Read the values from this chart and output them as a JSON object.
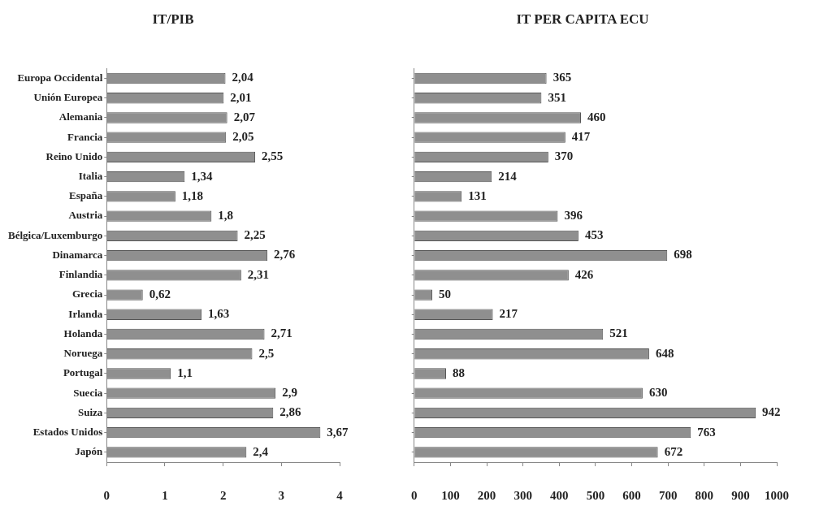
{
  "chart_data": [
    {
      "type": "bar",
      "orientation": "horizontal",
      "title": "IT/PIB",
      "categories": [
        "Europa Occidental",
        "Unión Europea",
        "Alemania",
        "Francia",
        "Reino Unido",
        "Italia",
        "España",
        "Austria",
        "Bélgica/Luxemburgo",
        "Dinamarca",
        "Finlandia",
        "Grecia",
        "Irlanda",
        "Holanda",
        "Noruega",
        "Portugal",
        "Suecia",
        "Suiza",
        "Estados Unidos",
        "Japón"
      ],
      "values": [
        2.04,
        2.01,
        2.07,
        2.05,
        2.55,
        1.34,
        1.18,
        1.8,
        2.25,
        2.76,
        2.31,
        0.62,
        1.63,
        2.71,
        2.5,
        1.1,
        2.9,
        2.86,
        3.67,
        2.4
      ],
      "value_labels": [
        "2,04",
        "2,01",
        "2,07",
        "2,05",
        "2,55",
        "1,34",
        "1,18",
        "1,8",
        "2,25",
        "2,76",
        "2,31",
        "0,62",
        "1,63",
        "2,71",
        "2,5",
        "1,1",
        "2,9",
        "2,86",
        "3,67",
        "2,4"
      ],
      "color": "#8f8f8f",
      "xlim": [
        0,
        4
      ],
      "xticks": [
        0,
        1,
        2,
        3,
        4
      ]
    },
    {
      "type": "bar",
      "orientation": "horizontal",
      "title": "IT PER CAPITA ECU",
      "categories": [
        null,
        null,
        null,
        null,
        null,
        null,
        null,
        null,
        null,
        null,
        null,
        null,
        null,
        null,
        null,
        null,
        null,
        null,
        null,
        null
      ],
      "values": [
        365,
        351,
        460,
        417,
        370,
        214,
        131,
        396,
        453,
        698,
        426,
        50,
        217,
        521,
        648,
        88,
        630,
        942,
        763,
        672
      ],
      "data_labels": true,
      "color": "#8f8f8f",
      "xlim": [
        0,
        1000
      ],
      "xticks": [
        0,
        100,
        200,
        300,
        400,
        500,
        600,
        700,
        800,
        900,
        1000
      ]
    }
  ]
}
